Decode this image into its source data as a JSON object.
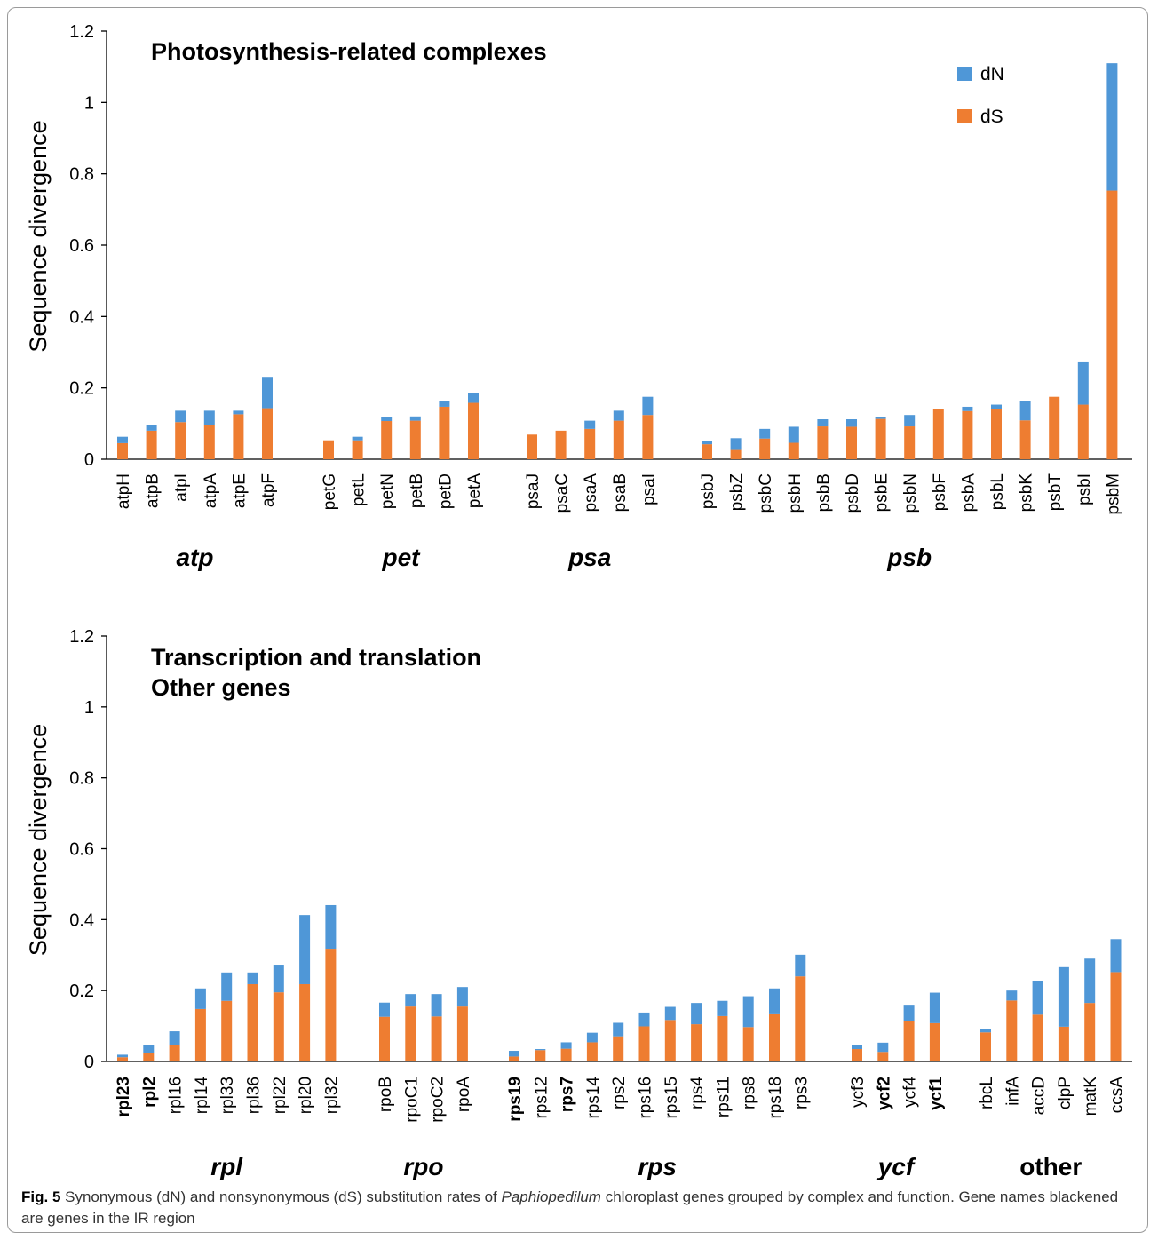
{
  "caption": {
    "label": "Fig. 5",
    "text_before": " Synonymous (dN) and nonsynonymous (dS) substitution rates of ",
    "italic": "Paphiopedilum",
    "text_after": " chloroplast genes grouped by complex and function. Gene names blackened are genes in the IR region"
  },
  "colors": {
    "dN": "#4f97d7",
    "dS": "#ee7d31"
  },
  "chart_data": [
    {
      "type": "bar",
      "stacked": true,
      "title": "Photosynthesis-related complexes",
      "title_lines": [
        "Photosynthesis-related complexes"
      ],
      "ylabel": "Sequence divergence",
      "ylim": [
        0,
        1.2
      ],
      "yticks": [
        "0",
        "0.2",
        "0.4",
        "0.6",
        "0.8",
        "1",
        "1.2"
      ],
      "legend": {
        "position": "top-right",
        "entries": [
          "dN",
          "dS"
        ]
      },
      "series": [
        {
          "name": "dS",
          "color": "#ee7d31"
        },
        {
          "name": "dN",
          "color": "#4f97d7"
        }
      ],
      "groups": [
        {
          "label": "atp",
          "italic": true,
          "genes": [
            {
              "name": "atpH",
              "dS": 0.045,
              "dN": 0.018
            },
            {
              "name": "atpB",
              "dS": 0.08,
              "dN": 0.017
            },
            {
              "name": "atpI",
              "dS": 0.104,
              "dN": 0.032
            },
            {
              "name": "atpA",
              "dS": 0.097,
              "dN": 0.039
            },
            {
              "name": "atpE",
              "dS": 0.126,
              "dN": 0.01
            },
            {
              "name": "atpF",
              "dS": 0.143,
              "dN": 0.088
            }
          ]
        },
        {
          "label": "pet",
          "italic": true,
          "genes": [
            {
              "name": "petG",
              "dS": 0.053,
              "dN": 0.0
            },
            {
              "name": "petL",
              "dS": 0.053,
              "dN": 0.01
            },
            {
              "name": "petN",
              "dS": 0.107,
              "dN": 0.012
            },
            {
              "name": "petB",
              "dS": 0.108,
              "dN": 0.012
            },
            {
              "name": "petD",
              "dS": 0.147,
              "dN": 0.017
            },
            {
              "name": "petA",
              "dS": 0.158,
              "dN": 0.028
            }
          ]
        },
        {
          "label": "psa",
          "italic": true,
          "genes": [
            {
              "name": "psaJ",
              "dS": 0.069,
              "dN": 0.0
            },
            {
              "name": "psaC",
              "dS": 0.08,
              "dN": 0.0
            },
            {
              "name": "psaA",
              "dS": 0.085,
              "dN": 0.023
            },
            {
              "name": "psaB",
              "dS": 0.108,
              "dN": 0.028
            },
            {
              "name": "psaI",
              "dS": 0.124,
              "dN": 0.051
            }
          ]
        },
        {
          "label": "psb",
          "italic": true,
          "genes": [
            {
              "name": "psbJ",
              "dS": 0.042,
              "dN": 0.01
            },
            {
              "name": "psbZ",
              "dS": 0.026,
              "dN": 0.033
            },
            {
              "name": "psbC",
              "dS": 0.058,
              "dN": 0.027
            },
            {
              "name": "psbH",
              "dS": 0.046,
              "dN": 0.045
            },
            {
              "name": "psbB",
              "dS": 0.092,
              "dN": 0.02
            },
            {
              "name": "psbD",
              "dS": 0.091,
              "dN": 0.021
            },
            {
              "name": "psbE",
              "dS": 0.113,
              "dN": 0.006
            },
            {
              "name": "psbN",
              "dS": 0.092,
              "dN": 0.032
            },
            {
              "name": "psbF",
              "dS": 0.141,
              "dN": 0.0
            },
            {
              "name": "psbA",
              "dS": 0.135,
              "dN": 0.012
            },
            {
              "name": "psbL",
              "dS": 0.14,
              "dN": 0.013
            },
            {
              "name": "psbK",
              "dS": 0.109,
              "dN": 0.055
            },
            {
              "name": "psbT",
              "dS": 0.175,
              "dN": 0.0
            },
            {
              "name": "psbI",
              "dS": 0.153,
              "dN": 0.121
            },
            {
              "name": "psbM",
              "dS": 0.753,
              "dN": 0.357
            }
          ]
        }
      ]
    },
    {
      "type": "bar",
      "stacked": true,
      "title": "Transcription and translation Other genes",
      "title_lines": [
        "Transcription and translation",
        "Other genes"
      ],
      "ylabel": "Sequence divergence",
      "ylim": [
        0,
        1.2
      ],
      "yticks": [
        "0",
        "0.2",
        "0.4",
        "0.6",
        "0.8",
        "1",
        "1.2"
      ],
      "series": [
        {
          "name": "dS",
          "color": "#ee7d31"
        },
        {
          "name": "dN",
          "color": "#4f97d7"
        }
      ],
      "groups": [
        {
          "label": "rpl",
          "italic": true,
          "genes": [
            {
              "name": "rpl23",
              "bold": true,
              "dS": 0.012,
              "dN": 0.007
            },
            {
              "name": "rpl2",
              "bold": true,
              "dS": 0.024,
              "dN": 0.023
            },
            {
              "name": "rpl16",
              "dS": 0.047,
              "dN": 0.038
            },
            {
              "name": "rpl14",
              "dS": 0.148,
              "dN": 0.058
            },
            {
              "name": "rpl33",
              "dS": 0.171,
              "dN": 0.08
            },
            {
              "name": "rpl36",
              "dS": 0.218,
              "dN": 0.033
            },
            {
              "name": "rpl22",
              "dS": 0.195,
              "dN": 0.078
            },
            {
              "name": "rpl20",
              "dS": 0.218,
              "dN": 0.195
            },
            {
              "name": "rpl32",
              "dS": 0.318,
              "dN": 0.123
            }
          ]
        },
        {
          "label": "rpo",
          "italic": true,
          "genes": [
            {
              "name": "rpoB",
              "dS": 0.126,
              "dN": 0.04
            },
            {
              "name": "rpoC1",
              "dS": 0.155,
              "dN": 0.035
            },
            {
              "name": "rpoC2",
              "dS": 0.127,
              "dN": 0.063
            },
            {
              "name": "rpoA",
              "dS": 0.155,
              "dN": 0.055
            }
          ]
        },
        {
          "label": "rps",
          "italic": true,
          "genes": [
            {
              "name": "rps19",
              "bold": true,
              "dS": 0.014,
              "dN": 0.016
            },
            {
              "name": "rps12",
              "dS": 0.032,
              "dN": 0.003
            },
            {
              "name": "rps7",
              "bold": true,
              "dS": 0.036,
              "dN": 0.018
            },
            {
              "name": "rps14",
              "dS": 0.054,
              "dN": 0.027
            },
            {
              "name": "rps2",
              "dS": 0.071,
              "dN": 0.038
            },
            {
              "name": "rps16",
              "dS": 0.099,
              "dN": 0.039
            },
            {
              "name": "rps15",
              "dS": 0.117,
              "dN": 0.037
            },
            {
              "name": "rps4",
              "dS": 0.105,
              "dN": 0.06
            },
            {
              "name": "rps11",
              "dS": 0.128,
              "dN": 0.043
            },
            {
              "name": "rps8",
              "dS": 0.097,
              "dN": 0.087
            },
            {
              "name": "rps18",
              "dS": 0.133,
              "dN": 0.073
            },
            {
              "name": "rps3",
              "dS": 0.24,
              "dN": 0.061
            }
          ]
        },
        {
          "label": "ycf",
          "italic": true,
          "genes": [
            {
              "name": "ycf3",
              "dS": 0.035,
              "dN": 0.011
            },
            {
              "name": "ycf2",
              "bold": true,
              "dS": 0.027,
              "dN": 0.026
            },
            {
              "name": "ycf4",
              "dS": 0.115,
              "dN": 0.045
            },
            {
              "name": "ycf1",
              "bold": true,
              "dS": 0.108,
              "dN": 0.086
            }
          ]
        },
        {
          "label": "other",
          "italic": false,
          "genes": [
            {
              "name": "rbcL",
              "dS": 0.082,
              "dN": 0.01
            },
            {
              "name": "infA",
              "dS": 0.172,
              "dN": 0.028
            },
            {
              "name": "accD",
              "dS": 0.132,
              "dN": 0.096
            },
            {
              "name": "clpP",
              "dS": 0.098,
              "dN": 0.168
            },
            {
              "name": "matK",
              "dS": 0.165,
              "dN": 0.125
            },
            {
              "name": "ccsA",
              "dS": 0.252,
              "dN": 0.093
            }
          ]
        }
      ]
    }
  ]
}
